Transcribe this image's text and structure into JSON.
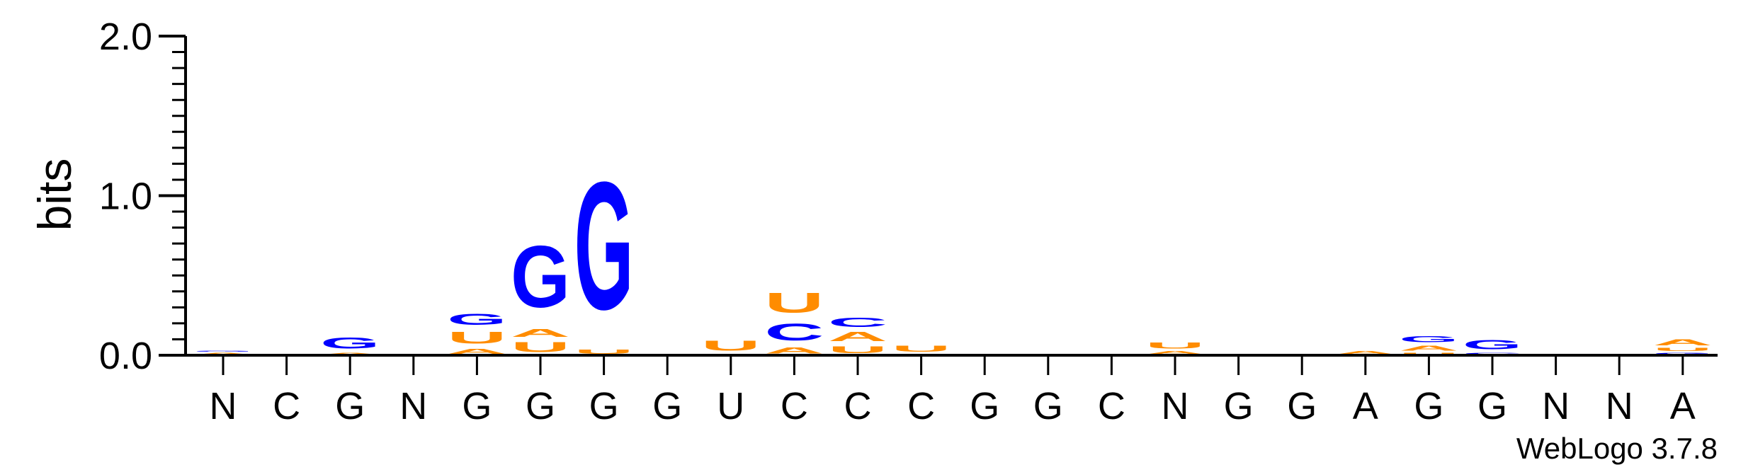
{
  "chart_data": {
    "type": "sequence-logo",
    "ylabel": "bits",
    "ylim": [
      0,
      2.0
    ],
    "yticks": [
      "0.0",
      "1.0",
      "2.0"
    ],
    "footer": "WebLogo 3.7.8",
    "colors": {
      "G": "#0000ff",
      "C": "#0000ff",
      "A": "#ff8c00",
      "U": "#ff8c00"
    },
    "positions": [
      {
        "label": "N",
        "stack": [
          {
            "letter": "A",
            "bits": 0.02
          },
          {
            "letter": "G",
            "bits": 0.01
          }
        ]
      },
      {
        "label": "C",
        "stack": []
      },
      {
        "label": "G",
        "stack": [
          {
            "letter": "A",
            "bits": 0.02
          },
          {
            "letter": "G",
            "bits": 0.11
          }
        ]
      },
      {
        "label": "N",
        "stack": []
      },
      {
        "label": "G",
        "stack": [
          {
            "letter": "A",
            "bits": 0.05
          },
          {
            "letter": "U",
            "bits": 0.12
          },
          {
            "letter": "G",
            "bits": 0.11
          }
        ]
      },
      {
        "label": "G",
        "stack": [
          {
            "letter": "U",
            "bits": 0.1
          },
          {
            "letter": "A",
            "bits": 0.08
          },
          {
            "letter": "G",
            "bits": 0.62
          }
        ]
      },
      {
        "label": "G",
        "stack": [
          {
            "letter": "U",
            "bits": 0.04
          },
          {
            "letter": "G",
            "bits": 1.28
          }
        ]
      },
      {
        "label": "G",
        "stack": []
      },
      {
        "label": "U",
        "stack": [
          {
            "letter": "A",
            "bits": 0.01
          },
          {
            "letter": "U",
            "bits": 0.1
          }
        ]
      },
      {
        "label": "C",
        "stack": [
          {
            "letter": "A",
            "bits": 0.06
          },
          {
            "letter": "C",
            "bits": 0.17
          },
          {
            "letter": "U",
            "bits": 0.2
          }
        ]
      },
      {
        "label": "C",
        "stack": [
          {
            "letter": "U",
            "bits": 0.07
          },
          {
            "letter": "A",
            "bits": 0.09
          },
          {
            "letter": "C",
            "bits": 0.09
          }
        ]
      },
      {
        "label": "C",
        "stack": [
          {
            "letter": "A",
            "bits": 0.01
          },
          {
            "letter": "U",
            "bits": 0.06
          }
        ]
      },
      {
        "label": "G",
        "stack": []
      },
      {
        "label": "G",
        "stack": [
          {
            "letter": "G",
            "bits": 0.01
          }
        ]
      },
      {
        "label": "C",
        "stack": []
      },
      {
        "label": "N",
        "stack": [
          {
            "letter": "A",
            "bits": 0.03
          },
          {
            "letter": "U",
            "bits": 0.06
          }
        ]
      },
      {
        "label": "G",
        "stack": []
      },
      {
        "label": "G",
        "stack": []
      },
      {
        "label": "A",
        "stack": [
          {
            "letter": "A",
            "bits": 0.03
          }
        ]
      },
      {
        "label": "G",
        "stack": [
          {
            "letter": "U",
            "bits": 0.02
          },
          {
            "letter": "A",
            "bits": 0.05
          },
          {
            "letter": "G",
            "bits": 0.06
          }
        ]
      },
      {
        "label": "G",
        "stack": [
          {
            "letter": "C",
            "bits": 0.02
          },
          {
            "letter": "G",
            "bits": 0.09
          }
        ]
      },
      {
        "label": "N",
        "stack": []
      },
      {
        "label": "N",
        "stack": []
      },
      {
        "label": "A",
        "stack": [
          {
            "letter": "G",
            "bits": 0.02
          },
          {
            "letter": "U",
            "bits": 0.03
          },
          {
            "letter": "A",
            "bits": 0.06
          }
        ]
      }
    ]
  }
}
